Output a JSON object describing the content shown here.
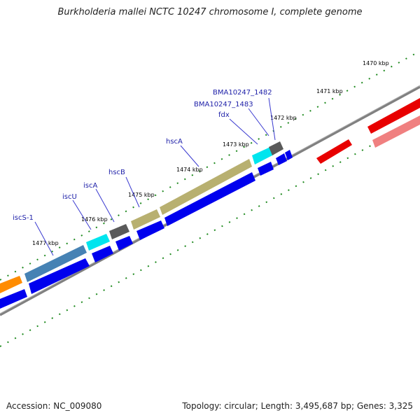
{
  "title": "Burkholderia mallei NCTC 10247 chromosome I, complete genome",
  "footer": {
    "accession": "Accession: NC_009080",
    "summary": "Topology: circular; Length: 3,495,687 bp; Genes: 3,325"
  },
  "colors": {
    "backbone": "#808080",
    "tick": "#1f8a1f",
    "label_line": "#3a3ad0",
    "gene_label": "#1d1fa8",
    "cds": "#0000ee",
    "orange_feature": "#ff8c00",
    "steelblue_feature": "#4682b4",
    "cyan_feature": "#00e5ee",
    "gray_feature": "#5a5a5a",
    "khaki_feature": "#b8b070",
    "red_feature": "#e80000",
    "pink_feature": "#f08080"
  },
  "tick_labels": [
    "1470 kbp",
    "1471 kbp",
    "1472 kbp",
    "1473 kbp",
    "1474 kbp",
    "1475 kbp",
    "1476 kbp",
    "1477 kbp"
  ],
  "gene_labels": [
    "BMA10247_1482",
    "BMA10247_1483",
    "fdx",
    "hscA",
    "hscB",
    "iscA",
    "iscU",
    "iscS-1"
  ]
}
